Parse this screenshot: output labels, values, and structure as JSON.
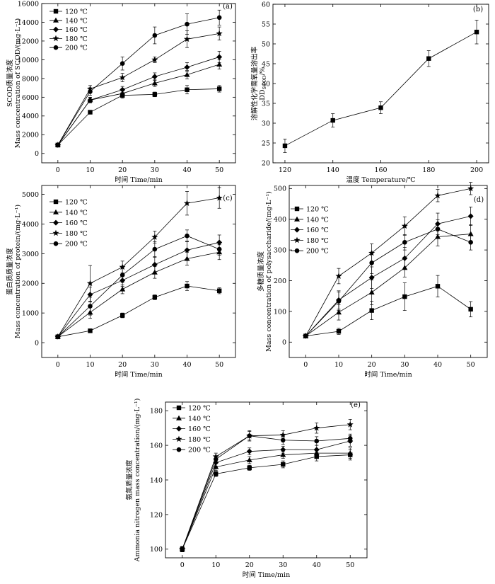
{
  "figure": {
    "charts": [
      {
        "type": "line",
        "panel_label": "(a)",
        "x": [
          0,
          10,
          20,
          30,
          40,
          50
        ],
        "xlabel": "时间 Time/min",
        "ylabel_cn": "SCOD质量浓度",
        "ylabel_en": "Mass concentration of SCOD/(mg·L⁻¹)",
        "xlim": [
          -5,
          55
        ],
        "ylim": [
          -1000,
          16000
        ],
        "xticks": [
          0,
          10,
          20,
          30,
          40,
          50
        ],
        "yticks": [
          0,
          2000,
          4000,
          6000,
          8000,
          10000,
          12000,
          14000,
          16000
        ],
        "legend_position": "top-left",
        "series": [
          {
            "name": "120 ℃",
            "marker": "square",
            "values": [
              900,
              4400,
              6200,
              6300,
              6800,
              6900
            ],
            "errors": [
              0,
              200,
              300,
              250,
              450,
              350
            ]
          },
          {
            "name": "140 ℃",
            "marker": "triangle",
            "values": [
              900,
              5700,
              6400,
              7500,
              8400,
              9500
            ],
            "errors": [
              0,
              250,
              300,
              350,
              450,
              500
            ]
          },
          {
            "name": "160 ℃",
            "marker": "diamond",
            "values": [
              900,
              5700,
              6800,
              8200,
              9200,
              10300
            ],
            "errors": [
              0,
              300,
              350,
              400,
              500,
              600
            ]
          },
          {
            "name": "180 ℃",
            "marker": "star",
            "values": [
              900,
              6900,
              8100,
              10000,
              12200,
              12800
            ],
            "errors": [
              0,
              350,
              450,
              300,
              900,
              700
            ]
          },
          {
            "name": "200 ℃",
            "marker": "circle",
            "values": [
              900,
              6600,
              9600,
              12600,
              13800,
              14500
            ],
            "errors": [
              0,
              400,
              700,
              900,
              1100,
              800
            ]
          }
        ]
      },
      {
        "type": "line",
        "panel_label": "(b)",
        "x": [
          120,
          140,
          160,
          180,
          200
        ],
        "xlabel": "温度 Temperature/℃",
        "ylabel_cn": "溶解性化学需氧量溶出率",
        "ylabel_en": "DD",
        "ylabel_sub": "SCOD",
        "ylabel_unit": "/%",
        "xlim": [
          115,
          205
        ],
        "ylim": [
          20,
          60
        ],
        "xticks": [
          120,
          140,
          160,
          180,
          200
        ],
        "yticks": [
          20,
          25,
          30,
          35,
          40,
          45,
          50,
          55,
          60
        ],
        "series": [
          {
            "name": "DD",
            "marker": "square",
            "values": [
              24.3,
              30.7,
              33.9,
              46.3,
              53
            ],
            "errors": [
              1.7,
              1.7,
              1.5,
              2.0,
              3.0
            ]
          }
        ]
      },
      {
        "type": "line",
        "panel_label": "(c)",
        "x": [
          0,
          10,
          20,
          30,
          40,
          50
        ],
        "xlabel": "时间 Time/min",
        "ylabel_cn": "蛋白质质量浓度",
        "ylabel_en": "Mass concentration of protein/(mg·L⁻¹)",
        "xlim": [
          -5,
          55
        ],
        "ylim": [
          -500,
          5300
        ],
        "xticks": [
          0,
          10,
          20,
          30,
          40,
          50
        ],
        "yticks": [
          0,
          1000,
          2000,
          3000,
          4000,
          5000
        ],
        "legend_position": "top-left",
        "series": [
          {
            "name": "120 ℃",
            "marker": "square",
            "values": [
              200,
              400,
              920,
              1530,
              1910,
              1750
            ],
            "errors": [
              0,
              60,
              80,
              80,
              150,
              100
            ]
          },
          {
            "name": "140 ℃",
            "marker": "triangle",
            "values": [
              200,
              1020,
              1800,
              2370,
              2830,
              3050
            ],
            "errors": [
              0,
              200,
              150,
              200,
              220,
              250
            ]
          },
          {
            "name": "160 ℃",
            "marker": "diamond",
            "values": [
              200,
              1620,
              2100,
              2630,
              3120,
              3380
            ],
            "errors": [
              0,
              250,
              200,
              250,
              300,
              250
            ]
          },
          {
            "name": "180 ℃",
            "marker": "star",
            "values": [
              200,
              2000,
              2550,
              3560,
              4700,
              4880
            ],
            "errors": [
              0,
              600,
              200,
              200,
              400,
              350
            ]
          },
          {
            "name": "200 ℃",
            "marker": "circle",
            "values": [
              200,
              1230,
              2280,
              3150,
              3600,
              3150
            ],
            "errors": [
              0,
              300,
              250,
              250,
              200,
              200
            ]
          }
        ]
      },
      {
        "type": "line",
        "panel_label": "(d)",
        "x": [
          0,
          10,
          20,
          30,
          40,
          50
        ],
        "xlabel": "时间 Time/min",
        "ylabel_cn": "多糖质量浓度",
        "ylabel_en": "Mass concentration of polysaccharide/(mg·L⁻¹)",
        "xlim": [
          -5,
          55
        ],
        "ylim": [
          -50,
          510
        ],
        "xticks": [
          0,
          10,
          20,
          30,
          40,
          50
        ],
        "yticks": [
          0,
          100,
          200,
          300,
          400,
          500
        ],
        "legend_position": "top-left",
        "series": [
          {
            "name": "120 ℃",
            "marker": "square",
            "values": [
              20,
              35,
              103,
              148,
              182,
              107
            ],
            "errors": [
              0,
              10,
              30,
              45,
              35,
              25
            ]
          },
          {
            "name": "140 ℃",
            "marker": "triangle",
            "values": [
              20,
              97,
              162,
              242,
              343,
              352
            ],
            "errors": [
              0,
              25,
              40,
              30,
              30,
              30
            ]
          },
          {
            "name": "160 ℃",
            "marker": "diamond",
            "values": [
              20,
              137,
              210,
              273,
              385,
              410
            ],
            "errors": [
              0,
              30,
              35,
              35,
              35,
              30
            ]
          },
          {
            "name": "180 ℃",
            "marker": "star",
            "values": [
              20,
              215,
              290,
              378,
              477,
              500
            ],
            "errors": [
              0,
              25,
              30,
              30,
              20,
              20
            ]
          },
          {
            "name": "200 ℃",
            "marker": "circle",
            "values": [
              20,
              133,
              258,
              325,
              368,
              325
            ],
            "errors": [
              0,
              30,
              35,
              25,
              30,
              25
            ]
          }
        ]
      },
      {
        "type": "line",
        "panel_label": "(e)",
        "x": [
          0,
          10,
          20,
          30,
          40,
          50
        ],
        "xlabel": "时间 Time/min",
        "ylabel_cn": "氨氮质量浓度",
        "ylabel_en": "Ammonia nitrogen mass concentration/(mg·L⁻¹)",
        "xlim": [
          -5,
          55
        ],
        "ylim": [
          95,
          185
        ],
        "xticks": [
          0,
          10,
          20,
          30,
          40,
          50
        ],
        "yticks": [
          100,
          120,
          140,
          160,
          180
        ],
        "legend_position": "top-left",
        "series": [
          {
            "name": "120 ℃",
            "marker": "square",
            "values": [
              100,
              143.5,
              147,
              149,
              153.5,
              154.5
            ],
            "errors": [
              1.5,
              1.5,
              1.5,
              2,
              2.5,
              3
            ]
          },
          {
            "name": "140 ℃",
            "marker": "triangle",
            "values": [
              100,
              147.5,
              151.5,
              154.5,
              155.5,
              155.5
            ],
            "errors": [
              1.5,
              2,
              2,
              2,
              2.5,
              3
            ]
          },
          {
            "name": "160 ℃",
            "marker": "diamond",
            "values": [
              100,
              150,
              156.5,
              157.5,
              157.5,
              162.5
            ],
            "errors": [
              1.5,
              2,
              2,
              2,
              2.5,
              3
            ]
          },
          {
            "name": "180 ℃",
            "marker": "star",
            "values": [
              100,
              153.5,
              165.5,
              166,
              170,
              172
            ],
            "errors": [
              1.5,
              2,
              3,
              2.5,
              3,
              3
            ]
          },
          {
            "name": "200 ℃",
            "marker": "circle",
            "values": [
              100,
              152,
              165.5,
              163,
              162.5,
              164
            ],
            "errors": [
              1.5,
              2,
              2.5,
              2.5,
              2.5,
              2.5
            ]
          }
        ]
      }
    ]
  }
}
